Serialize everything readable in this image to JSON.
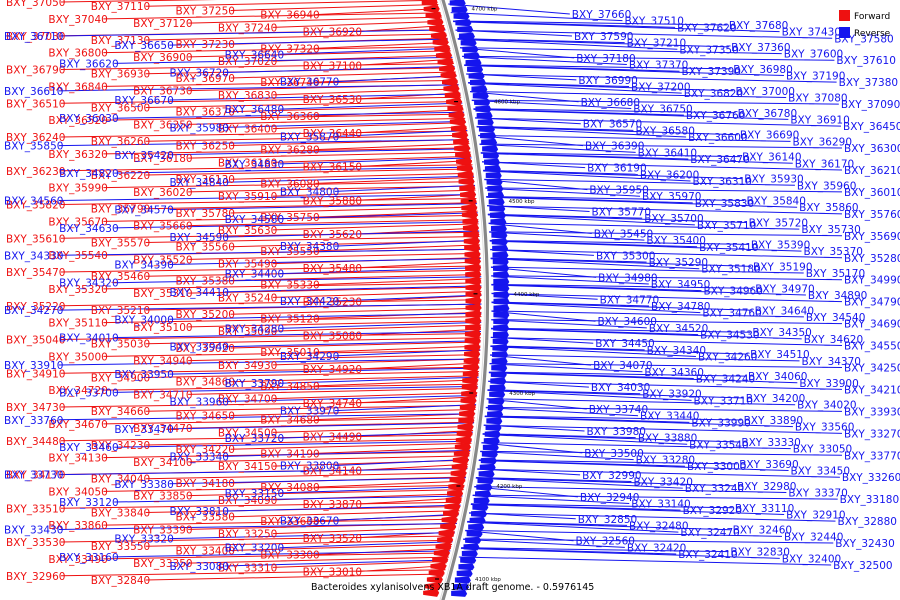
{
  "caption": "Bacteroides xylanisolvens XB1A draft genome.  - 0.5976145",
  "legend": [
    {
      "label": "Forward",
      "color": "#ee1111"
    },
    {
      "label": "Reverse",
      "color": "#1515ee"
    }
  ],
  "colors": {
    "forward": "#ee1111",
    "reverse": "#1515ee",
    "backbone": "#888888"
  },
  "ticks": [
    "4700 kbp",
    "4600 kbp",
    "4500 kbp",
    "4400 kbp",
    "4300 kbp",
    "4200 kbp",
    "4100 kbp"
  ],
  "forward_genes": [
    "BXY_37050",
    "BXY_37110",
    "BXY_37250",
    "BXY_36940",
    "BXY_37040",
    "BXY_37120",
    "BXY_37240",
    "BXY_36920",
    "BXY_37030",
    "BXY_37130",
    "BXY_37230",
    "BXY_37320",
    "BXY_36800",
    "BXY_36900",
    "BXY_37020",
    "BXY_37100",
    "BXY_36790",
    "BXY_36930",
    "BXY_36970",
    "BXY_36740",
    "BXY_36840",
    "BXY_36730",
    "BXY_36830",
    "BXY_36530",
    "BXY_36510",
    "BXY_36500",
    "BXY_36370",
    "BXY_36360",
    "BXY_36520",
    "BXY_36350",
    "BXY_36400",
    "BXY_36440",
    "BXY_36240",
    "BXY_36260",
    "BXY_36250",
    "BXY_36280",
    "BXY_36320",
    "BXY_36180",
    "BXY_36160",
    "BXY_36150",
    "BXY_36230",
    "BXY_36220",
    "BXY_36130",
    "BXY_36080",
    "BXY_35990",
    "BXY_36020",
    "BXY_35910",
    "BXY_35880",
    "BXY_35820",
    "BXY_35790",
    "BXY_35780",
    "BXY_35750",
    "BXY_35670",
    "BXY_35660",
    "BXY_35630",
    "BXY_35620",
    "BXY_35610",
    "BXY_35570",
    "BXY_35560",
    "BXY_35550",
    "BXY_35540",
    "BXY_35520",
    "BXY_35490",
    "BXY_35480",
    "BXY_35470",
    "BXY_35460",
    "BXY_35380",
    "BXY_35330",
    "BXY_35320",
    "BXY_35310",
    "BXY_35240",
    "BXY_35230",
    "BXY_35220",
    "BXY_35210",
    "BXY_35200",
    "BXY_35120",
    "BXY_35110",
    "BXY_35100",
    "BXY_35090",
    "BXY_35080",
    "BXY_35040",
    "BXY_35030",
    "BXY_35020",
    "BXY_35010",
    "BXY_35000",
    "BXY_34940",
    "BXY_34930",
    "BXY_34920",
    "BXY_34910",
    "BXY_34900",
    "BXY_34860",
    "BXY_34850",
    "BXY_34720",
    "BXY_34710",
    "BXY_34700",
    "BXY_34740",
    "BXY_34730",
    "BXY_34660",
    "BXY_34650",
    "BXY_34680",
    "BXY_34670",
    "BXY_34470",
    "BXY_34500",
    "BXY_34490",
    "BXY_34480",
    "BXY_34230",
    "BXY_34220",
    "BXY_34190",
    "BXY_34130",
    "BXY_34100",
    "BXY_34150",
    "BXY_34140",
    "BXY_34170",
    "BXY_34040",
    "BXY_34180",
    "BXY_34080",
    "BXY_34050",
    "BXY_33850",
    "BXY_34090",
    "BXY_33870",
    "BXY_33510",
    "BXY_33840",
    "BXY_33580",
    "BXY_33600",
    "BXY_33860",
    "BXY_33390",
    "BXY_33250",
    "BXY_33520",
    "BXY_33530",
    "BXY_33550",
    "BXY_33400",
    "BXY_33300",
    "BXY_33490",
    "BXY_33350",
    "BXY_33310",
    "BXY_33010",
    "BXY_32960",
    "BXY_32840"
  ],
  "reverse_genes_left": [
    "BXY_36710",
    "BXY_36650",
    "BXY_36640",
    "BXY_36620",
    "BXY_36720",
    "BXY_36770",
    "BXY_36610",
    "BXY_36670",
    "BXY_36480",
    "BXY_36030",
    "BXY_35980",
    "BXY_35870",
    "BXY_35850",
    "BXY_35420",
    "BXY_34830",
    "BXY_34820",
    "BXY_34840",
    "BXY_34800",
    "BXY_34560",
    "BXY_34570",
    "BXY_34580",
    "BXY_34630",
    "BXY_34590",
    "BXY_34380",
    "BXY_34330",
    "BXY_34390",
    "BXY_34400",
    "BXY_34320",
    "BXY_34410",
    "BXY_34420",
    "BXY_34270",
    "BXY_34000",
    "BXY_34280",
    "BXY_34010",
    "BXY_33940",
    "BXY_34290",
    "BXY_33910",
    "BXY_33950",
    "BXY_33790",
    "BXY_33700",
    "BXY_33960",
    "BXY_33970",
    "BXY_33760",
    "BXY_33470",
    "BXY_33720",
    "BXY_33460",
    "BXY_33340",
    "BXY_33800",
    "BXY_33730",
    "BXY_33380",
    "BXY_33150",
    "BXY_33120",
    "BXY_33810",
    "BXY_33670",
    "BXY_33430",
    "BXY_33320",
    "BXY_33200",
    "BXY_33160",
    "BXY_33080"
  ],
  "reverse_genes_right": [
    "BXY_37660",
    "BXY_37510",
    "BXY_37620",
    "BXY_37680",
    "BXY_37430",
    "BXY_37580",
    "BXY_37590",
    "BXY_37210",
    "BXY_37350",
    "BXY_37360",
    "BXY_37600",
    "BXY_37610",
    "BXY_37180",
    "BXY_37370",
    "BXY_37390",
    "BXY_36980",
    "BXY_37190",
    "BXY_37380",
    "BXY_36990",
    "BXY_37200",
    "BXY_36820",
    "BXY_37000",
    "BXY_37080",
    "BXY_37090",
    "BXY_36680",
    "BXY_36750",
    "BXY_36760",
    "BXY_36780",
    "BXY_36910",
    "BXY_36450",
    "BXY_36570",
    "BXY_36580",
    "BXY_36600",
    "BXY_36690",
    "BXY_36290",
    "BXY_36300",
    "BXY_36390",
    "BXY_36410",
    "BXY_36470",
    "BXY_36140",
    "BXY_36170",
    "BXY_36210",
    "BXY_36190",
    "BXY_36200",
    "BXY_36310",
    "BXY_35930",
    "BXY_35960",
    "BXY_36010",
    "BXY_35950",
    "BXY_35970",
    "BXY_35830",
    "BXY_35840",
    "BXY_35860",
    "BXY_35760",
    "BXY_35770",
    "BXY_35700",
    "BXY_35710",
    "BXY_35720",
    "BXY_35730",
    "BXY_35690",
    "BXY_35450",
    "BXY_35400",
    "BXY_35410",
    "BXY_35390",
    "BXY_35370",
    "BXY_35280",
    "BXY_35300",
    "BXY_35290",
    "BXY_35180",
    "BXY_35190",
    "BXY_35170",
    "BXY_34990",
    "BXY_34980",
    "BXY_34950",
    "BXY_34960",
    "BXY_34970",
    "BXY_34890",
    "BXY_34790",
    "BXY_34770",
    "BXY_34780",
    "BXY_34760",
    "BXY_34640",
    "BXY_34540",
    "BXY_34690",
    "BXY_34600",
    "BXY_34520",
    "BXY_34530",
    "BXY_34350",
    "BXY_34620",
    "BXY_34550",
    "BXY_34450",
    "BXY_34340",
    "BXY_34260",
    "BXY_34510",
    "BXY_34370",
    "BXY_34250",
    "BXY_34070",
    "BXY_34360",
    "BXY_34240",
    "BXY_34060",
    "BXY_33900",
    "BXY_34210",
    "BXY_34030",
    "BXY_33920",
    "BXY_33710",
    "BXY_34200",
    "BXY_34020",
    "BXY_33930",
    "BXY_33740",
    "BXY_33440",
    "BXY_33990",
    "BXY_33890",
    "BXY_33560",
    "BXY_33270",
    "BXY_33980",
    "BXY_33880",
    "BXY_33540",
    "BXY_33330",
    "BXY_33050",
    "BXY_33770",
    "BXY_33500",
    "BXY_33280",
    "BXY_33000",
    "BXY_33690",
    "BXY_33450",
    "BXY_33260",
    "BXY_32990",
    "BXY_33420",
    "BXY_33240",
    "BXY_32980",
    "BXY_33370",
    "BXY_33180",
    "BXY_32940",
    "BXY_33140",
    "BXY_32920",
    "BXY_33110",
    "BXY_32910",
    "BXY_32880",
    "BXY_32850",
    "BXY_32480",
    "BXY_32470",
    "BXY_32460",
    "BXY_32440",
    "BXY_32430",
    "BXY_32560",
    "BXY_32420",
    "BXY_32410",
    "BXY_32830",
    "BXY_32400",
    "BXY_32500"
  ]
}
